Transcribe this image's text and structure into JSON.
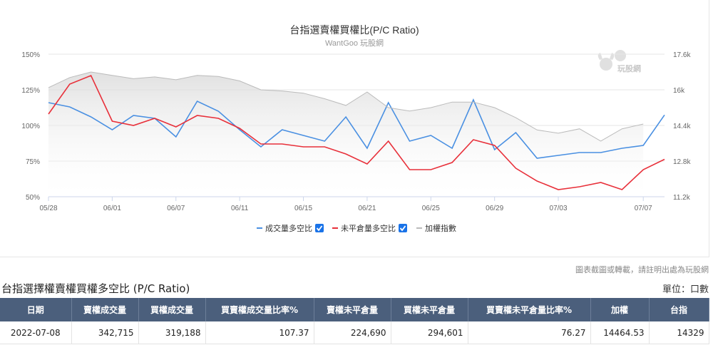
{
  "chart_data": {
    "type": "line",
    "title": "台指選賣權買權比(P/C Ratio)",
    "subtitle": "WantGoo 玩股網",
    "watermark": "玩股網",
    "x_tick_labels": [
      "05/28",
      "06/01",
      "06/07",
      "06/11",
      "06/15",
      "06/21",
      "06/25",
      "06/29",
      "07/03",
      "07/07"
    ],
    "y_left_ticks": [
      "50%",
      "75%",
      "100%",
      "125%",
      "150%"
    ],
    "y_left_range": [
      50,
      150
    ],
    "y_right_ticks": [
      "11.2k",
      "12.8k",
      "14.4k",
      "16k",
      "17.6k"
    ],
    "y_right_range": [
      11200,
      17600
    ],
    "grid": true,
    "legend_position": "bottom",
    "colors": {
      "volume": "#4a90e2",
      "oi": "#e8303a",
      "index": "#bbbbbb"
    },
    "series": [
      {
        "name": "成交量多空比",
        "axis": "left",
        "points": [
          [
            0,
            116
          ],
          [
            1,
            113
          ],
          [
            2,
            106
          ],
          [
            3,
            97
          ],
          [
            4,
            107
          ],
          [
            5,
            105
          ],
          [
            6,
            92
          ],
          [
            7,
            117
          ],
          [
            8,
            110
          ],
          [
            9,
            97
          ],
          [
            10,
            85
          ],
          [
            11,
            97
          ],
          [
            12,
            93
          ],
          [
            13,
            89
          ],
          [
            14,
            106
          ],
          [
            15,
            84
          ],
          [
            16,
            116
          ],
          [
            17,
            89
          ],
          [
            18,
            93
          ],
          [
            19,
            84
          ],
          [
            20,
            118
          ],
          [
            21,
            83
          ],
          [
            22,
            95
          ],
          [
            23,
            77
          ],
          [
            24,
            79
          ],
          [
            25,
            81
          ],
          [
            26,
            81
          ],
          [
            27,
            84
          ],
          [
            28,
            86
          ],
          [
            29,
            107.37
          ]
        ]
      },
      {
        "name": "未平倉量多空比",
        "axis": "left",
        "points": [
          [
            0,
            108
          ],
          [
            1,
            129
          ],
          [
            2,
            135
          ],
          [
            3,
            103
          ],
          [
            4,
            100
          ],
          [
            5,
            105
          ],
          [
            6,
            99
          ],
          [
            7,
            107
          ],
          [
            8,
            105
          ],
          [
            9,
            98
          ],
          [
            10,
            87
          ],
          [
            11,
            87
          ],
          [
            12,
            85
          ],
          [
            13,
            85
          ],
          [
            14,
            80
          ],
          [
            15,
            73
          ],
          [
            16,
            89
          ],
          [
            17,
            69
          ],
          [
            18,
            69
          ],
          [
            19,
            74
          ],
          [
            20,
            90
          ],
          [
            21,
            86
          ],
          [
            22,
            70
          ],
          [
            23,
            61
          ],
          [
            24,
            55
          ],
          [
            25,
            57
          ],
          [
            26,
            60
          ],
          [
            27,
            55
          ],
          [
            28,
            69
          ],
          [
            29,
            76.27
          ]
        ]
      },
      {
        "name": "加權指數",
        "axis": "right",
        "points": [
          [
            0,
            16100
          ],
          [
            1,
            16550
          ],
          [
            2,
            16800
          ],
          [
            3,
            16650
          ],
          [
            4,
            16500
          ],
          [
            5,
            16580
          ],
          [
            6,
            16450
          ],
          [
            7,
            16650
          ],
          [
            8,
            16600
          ],
          [
            9,
            16400
          ],
          [
            10,
            16000
          ],
          [
            11,
            15950
          ],
          [
            12,
            15850
          ],
          [
            13,
            15600
          ],
          [
            14,
            15300
          ],
          [
            15,
            15900
          ],
          [
            16,
            15200
          ],
          [
            17,
            15050
          ],
          [
            18,
            15200
          ],
          [
            19,
            15450
          ],
          [
            20,
            15450
          ],
          [
            21,
            15200
          ],
          [
            22,
            14750
          ],
          [
            23,
            14200
          ],
          [
            24,
            14050
          ],
          [
            25,
            14250
          ],
          [
            26,
            13700
          ],
          [
            27,
            14250
          ],
          [
            28,
            14464.53
          ]
        ]
      }
    ],
    "x_tick_positions": [
      0,
      3,
      6,
      9,
      12,
      15,
      18,
      21,
      24,
      28
    ]
  },
  "copyright_note": "圖表截圖或轉載，請註明出處為玩股網",
  "table": {
    "title": "台指選擇權賣權買權多空比 (P/C Ratio)",
    "unit_label": "單位：口數",
    "headers": [
      "日期",
      "賣權成交量",
      "買權成交量",
      "買賣權成交量比率%",
      "賣權未平倉量",
      "買權未平倉量",
      "買賣權未平倉量比率%",
      "加權",
      "台指"
    ],
    "rows": [
      [
        "2022-07-08",
        "342,715",
        "319,188",
        "107.37",
        "224,690",
        "294,601",
        "76.27",
        "14464.53",
        "14329"
      ]
    ]
  }
}
